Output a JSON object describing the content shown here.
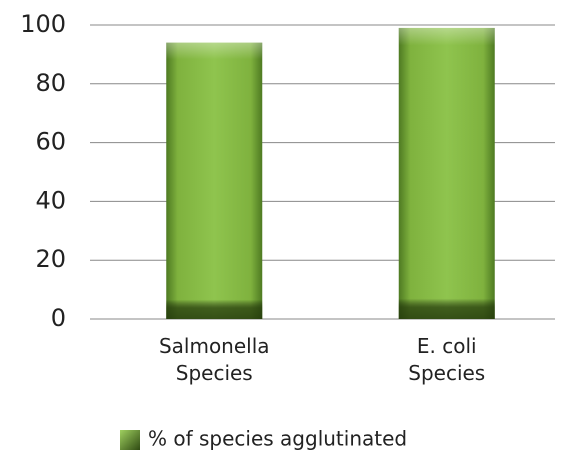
{
  "chart_data": {
    "type": "bar",
    "categories": [
      "Salmonella Species",
      "E. coli Species"
    ],
    "series": [
      {
        "name": "% of species agglutinated",
        "color": "#8cc04a",
        "values": [
          94,
          99
        ]
      }
    ],
    "ylim": [
      0,
      100
    ],
    "yticks": [
      0,
      20,
      40,
      60,
      80,
      100
    ],
    "grid": true,
    "legend": "bottom"
  }
}
